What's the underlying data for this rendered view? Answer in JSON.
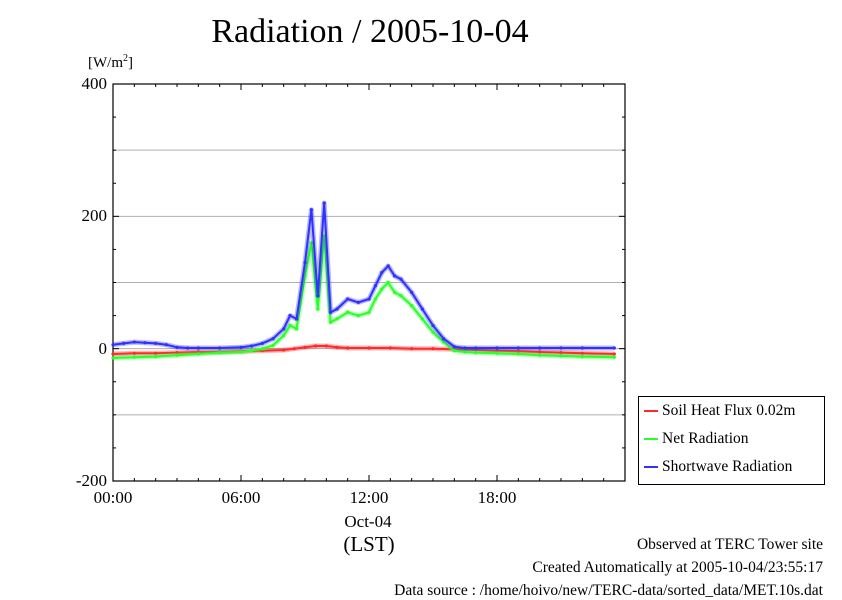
{
  "chart_data": {
    "type": "line",
    "title": "Radiation / 2005-10-04",
    "unit_label": "[W/m",
    "unit_sup": "2",
    "unit_close": "]",
    "xlabel": "(LST)",
    "x_date_label": "Oct-04",
    "x_hour_range": [
      0,
      24
    ],
    "ylim": [
      -200,
      400
    ],
    "y_ticks": [
      {
        "value": 400,
        "label": "400"
      },
      {
        "value": 200,
        "label": "200"
      },
      {
        "value": 0,
        "label": "0"
      },
      {
        "value": -200,
        "label": "-200"
      }
    ],
    "y_grid": [
      300,
      200,
      100,
      0,
      -100
    ],
    "x_ticks": [
      {
        "value": 0,
        "label": "00:00"
      },
      {
        "value": 6,
        "label": "06:00"
      },
      {
        "value": 12,
        "label": "12:00"
      },
      {
        "value": 18,
        "label": "18:00"
      }
    ],
    "grid": true,
    "legend_position": "bottom-right outside",
    "series": [
      {
        "name": "Soil Heat Flux 0.02m",
        "color": "#ff2a2a",
        "x": [
          0,
          1,
          2,
          3,
          4,
          5,
          6,
          7,
          8,
          8.5,
          9,
          9.5,
          10,
          10.5,
          11,
          12,
          13,
          14,
          15,
          16,
          17,
          18,
          19,
          20,
          21,
          22,
          23.5
        ],
        "values": [
          -8,
          -7,
          -7,
          -6,
          -5,
          -5,
          -4,
          -3,
          -2,
          0,
          2,
          4,
          4,
          2,
          1,
          1,
          1,
          0,
          0,
          -1,
          -2,
          -3,
          -4,
          -5,
          -6,
          -7,
          -8
        ]
      },
      {
        "name": "Net Radiation",
        "color": "#2aff2a",
        "x": [
          0,
          1,
          2,
          3,
          4,
          5,
          6,
          6.5,
          7,
          7.5,
          8,
          8.3,
          8.6,
          9,
          9.3,
          9.6,
          9.9,
          10.2,
          10.5,
          11,
          11.5,
          12,
          12.3,
          12.6,
          12.9,
          13.2,
          13.5,
          14,
          14.5,
          15,
          15.5,
          16,
          16.5,
          17,
          18,
          19,
          20,
          21,
          22,
          23.5
        ],
        "values": [
          -14,
          -13,
          -12,
          -10,
          -8,
          -6,
          -5,
          -3,
          0,
          5,
          20,
          35,
          30,
          110,
          160,
          60,
          170,
          40,
          45,
          55,
          50,
          55,
          75,
          90,
          100,
          85,
          80,
          65,
          45,
          25,
          10,
          -3,
          -5,
          -6,
          -7,
          -8,
          -10,
          -11,
          -12,
          -13
        ]
      },
      {
        "name": "Shortwave Radiation",
        "color": "#3030ff",
        "x": [
          0,
          0.5,
          1,
          1.5,
          2,
          2.5,
          3,
          3.5,
          4,
          5,
          6,
          6.5,
          7,
          7.5,
          8,
          8.3,
          8.6,
          9,
          9.3,
          9.6,
          9.9,
          10.2,
          10.5,
          11,
          11.5,
          12,
          12.3,
          12.6,
          12.9,
          13.2,
          13.5,
          14,
          14.5,
          15,
          15.5,
          16,
          16.5,
          17,
          18,
          19,
          20,
          21,
          22,
          23.5
        ],
        "values": [
          6,
          8,
          10,
          9,
          8,
          6,
          2,
          1,
          1,
          1,
          2,
          4,
          8,
          15,
          30,
          50,
          45,
          130,
          210,
          80,
          220,
          55,
          60,
          75,
          70,
          75,
          95,
          115,
          125,
          110,
          105,
          85,
          60,
          35,
          15,
          3,
          1,
          1,
          1,
          1,
          1,
          1,
          1,
          1
        ]
      }
    ]
  },
  "footer": {
    "line1": "Observed at TERC Tower site",
    "line2": "Created Automatically at 2005-10-04/23:55:17",
    "line3": "Data source : /home/hoivo/new/TERC-data/sorted_data/MET.10s.dat"
  }
}
